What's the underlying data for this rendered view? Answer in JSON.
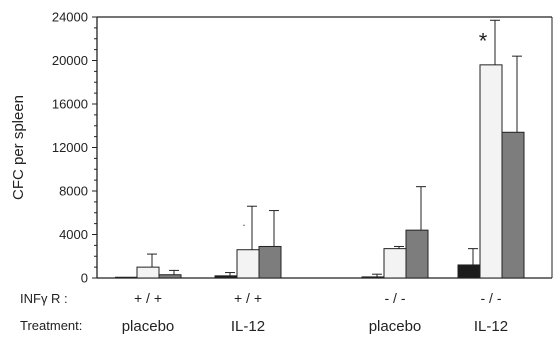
{
  "chart_data": {
    "type": "bar",
    "ylabel": "CFC per spleen",
    "ylim": [
      0,
      24000
    ],
    "yticks": [
      0,
      4000,
      8000,
      12000,
      16000,
      20000,
      24000
    ],
    "row_labels": {
      "receptor": "INFγ R :",
      "treatment": "Treatment:"
    },
    "groups": [
      {
        "receptor": "+ / +",
        "treatment": "placebo"
      },
      {
        "receptor": "+ / +",
        "treatment": "IL-12"
      },
      {
        "receptor": "- / -",
        "treatment": "placebo"
      },
      {
        "receptor": "- / -",
        "treatment": "IL-12"
      }
    ],
    "series": [
      {
        "fill": "#1c1c1c",
        "values": [
          0,
          200,
          100,
          1200
        ],
        "errors": [
          0,
          300,
          250,
          1500
        ]
      },
      {
        "fill": "#f3f3f3",
        "values": [
          1000,
          2600,
          2700,
          19600
        ],
        "errors": [
          1200,
          4000,
          200,
          4100
        ]
      },
      {
        "fill": "#7d7d7d",
        "values": [
          300,
          2900,
          4400,
          13400
        ],
        "errors": [
          400,
          3300,
          4000,
          7000
        ]
      }
    ],
    "annotations": [
      {
        "text": "*",
        "group": 3,
        "series": 1,
        "size": "large"
      },
      {
        "text": ".",
        "group": 1,
        "series": 1,
        "size": "small"
      }
    ],
    "grid": false,
    "legend": "none"
  }
}
